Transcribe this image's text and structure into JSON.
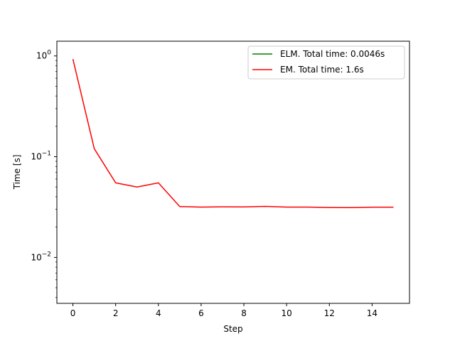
{
  "chart_data": {
    "type": "line",
    "xlabel": "Step",
    "ylabel": "Time [s]",
    "yscale": "log",
    "xlim": [
      -0.75,
      15.75
    ],
    "ylim": [
      0.0035,
      1.4
    ],
    "x_ticks": [
      0,
      2,
      4,
      6,
      8,
      10,
      12,
      14
    ],
    "x_tick_labels": [
      "0",
      "2",
      "4",
      "6",
      "8",
      "10",
      "12",
      "14"
    ],
    "y_ticks": [
      0.01,
      0.1,
      1
    ],
    "y_tick_labels": [
      "10^{-2}",
      "10^{-1}",
      "10^{0}"
    ],
    "grid": false,
    "legend_position": "top-right",
    "series": [
      {
        "name": "ELM. Total time: 0.0046s",
        "color": "#008000",
        "x": [],
        "y": []
      },
      {
        "name": "EM. Total time: 1.6s",
        "color": "#ff0000",
        "x": [
          0,
          1,
          2,
          3,
          4,
          5,
          6,
          7,
          8,
          9,
          10,
          11,
          12,
          13,
          14,
          15
        ],
        "y": [
          0.93,
          0.12,
          0.055,
          0.05,
          0.055,
          0.032,
          0.0316,
          0.0318,
          0.0317,
          0.0321,
          0.0316,
          0.0316,
          0.0313,
          0.0312,
          0.0315,
          0.0315
        ]
      }
    ]
  }
}
